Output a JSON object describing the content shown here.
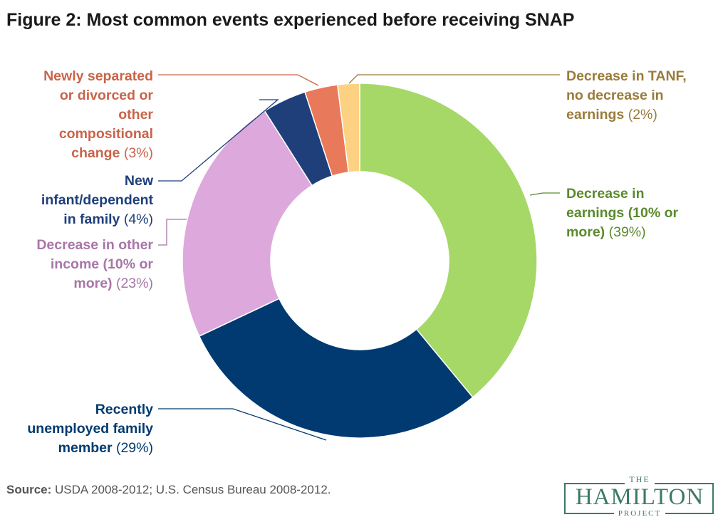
{
  "title": "Figure 2: Most common events experienced before receiving SNAP",
  "source": {
    "label": "Source:",
    "text": "USDA 2008-2012; U.S. Census Bureau 2008-2012."
  },
  "logo": {
    "top": "THE",
    "name": "HAMILTON",
    "bottom": "PROJECT"
  },
  "chart_data": {
    "type": "pie",
    "title": "Figure 2: Most common events experienced before receiving SNAP",
    "donut": true,
    "slices": [
      {
        "label": "Decrease in earnings (10% or more)",
        "value": 39,
        "pct_text": "(39%)",
        "color": "#a5d867",
        "text_color": "#5a8a2c",
        "lines": [
          "Decrease in",
          "earnings (10% or",
          "more)"
        ]
      },
      {
        "label": "Recently unemployed family member",
        "value": 29,
        "pct_text": "(29%)",
        "color": "#003a70",
        "text_color": "#003a70",
        "lines": [
          "Recently",
          "unemployed family",
          "member"
        ]
      },
      {
        "label": "Decrease in other income (10% or more)",
        "value": 23,
        "pct_text": "(23%)",
        "color": "#dda9dc",
        "text_color": "#a876a8",
        "lines": [
          "Decrease in other",
          "income (10% or",
          "more)"
        ]
      },
      {
        "label": "New infant/dependent in family",
        "value": 4,
        "pct_text": "(4%)",
        "color": "#1e3f7a",
        "text_color": "#1e3f7a",
        "lines": [
          "New",
          "infant/dependent",
          "in family"
        ]
      },
      {
        "label": "Newly separated or divorced or other compositional change",
        "value": 3,
        "pct_text": "(3%)",
        "color": "#e8795a",
        "text_color": "#c9644a",
        "lines": [
          "Newly separated",
          "or divorced or",
          "other",
          "compositional",
          "change"
        ]
      },
      {
        "label": "Decrease in TANF, no decrease in earnings",
        "value": 2,
        "pct_text": "(2%)",
        "color": "#fcd282",
        "text_color": "#9a7b3a",
        "lines": [
          "Decrease in TANF,",
          "no decrease in",
          "earnings"
        ]
      }
    ]
  }
}
